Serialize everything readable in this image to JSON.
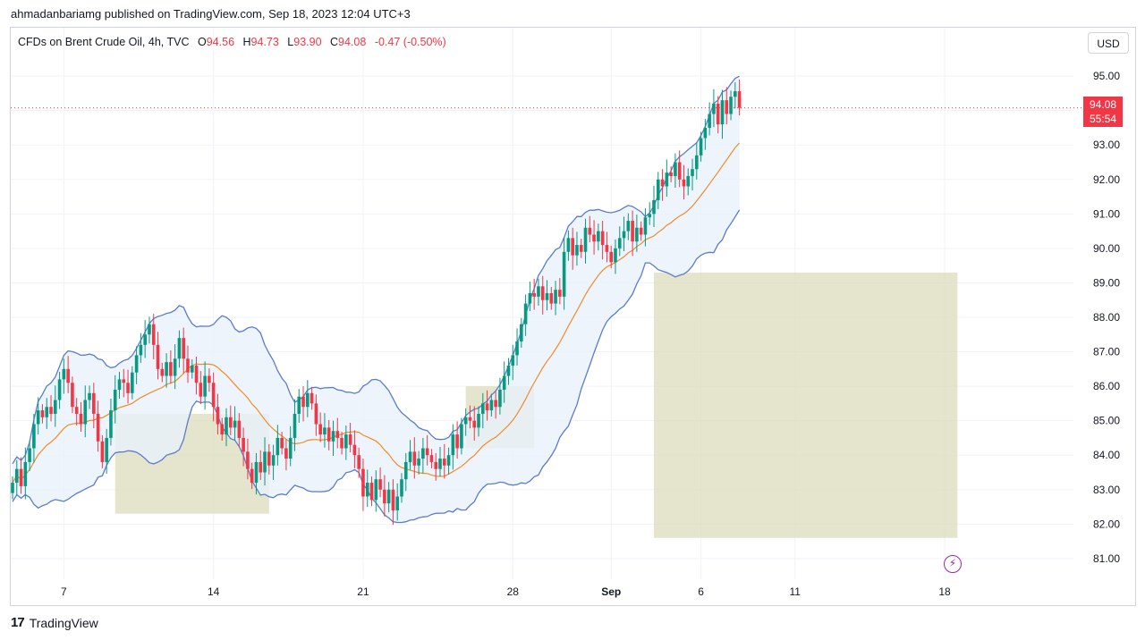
{
  "header": {
    "published": "ahmadanbariamg published on TradingView.com, Sep 18, 2023 12:04 UTC+3"
  },
  "legend": {
    "symbol": "CFDs on Brent Crude Oil, 4h, TVC",
    "open_label": "O",
    "open": "94.56",
    "high_label": "H",
    "high": "94.73",
    "low_label": "L",
    "low": "93.90",
    "close_label": "C",
    "close": "94.08",
    "change": "-0.47 (-0.50%)"
  },
  "toolbar": {
    "currency": "USD"
  },
  "last_price": {
    "price": "94.08",
    "countdown": "55:54"
  },
  "footer": {
    "brand": "TradingView",
    "logo": "17"
  },
  "colors": {
    "up": "#089981",
    "down": "#f23645",
    "band": "#5b7ccb",
    "basis": "#f08c2a",
    "band_fill": "#e8f1fb",
    "zone": "#dcdcbc"
  },
  "chart_data": {
    "type": "candlestick",
    "title": "CFDs on Brent Crude Oil, 4h, TVC",
    "ylim": [
      80.4,
      95.6
    ],
    "y_ticks": [
      81,
      82,
      83,
      84,
      85,
      86,
      87,
      88,
      89,
      90,
      91,
      92,
      93,
      94,
      95
    ],
    "x_ticks": [
      {
        "label": "7",
        "t": 12
      },
      {
        "label": "14",
        "t": 47
      },
      {
        "label": "21",
        "t": 82
      },
      {
        "label": "28",
        "t": 117
      },
      {
        "label": "Sep",
        "t": 140
      },
      {
        "label": "6",
        "t": 161
      },
      {
        "label": "11",
        "t": 183
      },
      {
        "label": "18",
        "t": 218
      }
    ],
    "last_price": 94.08,
    "close_series": [
      83.2,
      83.6,
      83.1,
      83.8,
      84.2,
      84.9,
      85.3,
      85.1,
      85.4,
      85.2,
      85.6,
      86.2,
      86.5,
      86.1,
      85.4,
      85.2,
      84.9,
      85.6,
      85.8,
      85.2,
      84.4,
      83.8,
      84.5,
      85.3,
      85.9,
      86.2,
      86.1,
      85.8,
      86.4,
      86.9,
      87.2,
      87.5,
      87.8,
      87.2,
      86.5,
      86.3,
      86.7,
      86.3,
      86.8,
      87.4,
      86.8,
      86.4,
      86.6,
      86.1,
      85.7,
      86.3,
      86.1,
      85.4,
      84.9,
      84.6,
      85.1,
      84.8,
      85.0,
      84.5,
      84.1,
      83.6,
      83.2,
      83.8,
      83.5,
      84.1,
      83.7,
      84.0,
      84.5,
      84.2,
      83.9,
      84.5,
      85.2,
      85.7,
      85.4,
      85.8,
      85.5,
      84.9,
      84.6,
      84.8,
      84.4,
      84.7,
      84.5,
      84.2,
      84.6,
      84.3,
      84.0,
      83.6,
      82.8,
      83.2,
      82.7,
      83.3,
      83.0,
      82.6,
      83.0,
      82.4,
      82.8,
      83.3,
      83.8,
      84.1,
      83.7,
      83.9,
      84.2,
      84.0,
      83.8,
      83.6,
      83.9,
      83.7,
      84.0,
      84.6,
      84.2,
      84.9,
      85.1,
      85.0,
      84.8,
      85.2,
      85.5,
      85.3,
      85.6,
      85.4,
      85.9,
      86.3,
      86.6,
      86.9,
      87.3,
      87.8,
      88.4,
      88.7,
      88.6,
      88.9,
      88.5,
      88.7,
      88.4,
      88.8,
      88.6,
      89.9,
      90.3,
      89.8,
      90.1,
      89.9,
      90.6,
      90.4,
      90.2,
      90.5,
      90.1,
      89.9,
      89.6,
      90.0,
      90.3,
      90.5,
      90.8,
      90.2,
      90.6,
      90.4,
      90.9,
      91.0,
      91.4,
      92.0,
      91.8,
      92.2,
      92.1,
      92.5,
      92.0,
      91.8,
      92.1,
      92.3,
      92.7,
      93.2,
      93.5,
      93.9,
      94.2,
      93.6,
      94.3,
      93.9,
      94.4,
      94.56,
      94.08
    ],
    "zones": [
      {
        "t0": 24,
        "t1": 60,
        "low": 82.3,
        "high": 85.2
      },
      {
        "t0": 106,
        "t1": 122,
        "low": 84.2,
        "high": 86.0
      },
      {
        "t0": 150,
        "t1": 221,
        "low": 81.6,
        "high": 89.3
      }
    ]
  }
}
